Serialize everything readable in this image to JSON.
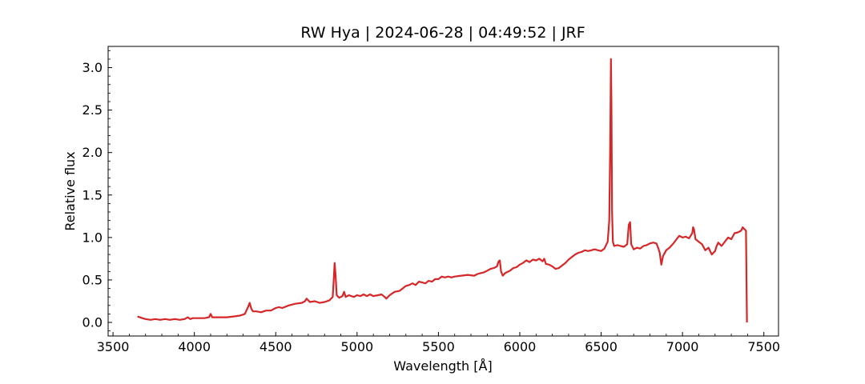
{
  "chart_data": {
    "type": "line",
    "title": "RW Hya | 2024-06-28 | 04:49:52 | JRF",
    "xlabel": "Wavelength [Å]",
    "ylabel": "Relative flux",
    "xlim": [
      3470,
      7590
    ],
    "ylim": [
      -0.16,
      3.25
    ],
    "xticks": [
      3500,
      4000,
      4500,
      5000,
      5500,
      6000,
      6500,
      7000,
      7500
    ],
    "xtick_labels": [
      "3500",
      "4000",
      "4500",
      "5000",
      "5500",
      "6000",
      "6500",
      "7000",
      "7500"
    ],
    "yticks": [
      0.0,
      0.5,
      1.0,
      1.5,
      2.0,
      2.5,
      3.0
    ],
    "ytick_labels": [
      "0.0",
      "0.5",
      "1.0",
      "1.5",
      "2.0",
      "2.5",
      "3.0"
    ],
    "grid": false,
    "series": [
      {
        "color": "#d62728",
        "x": [
          3650,
          3680,
          3700,
          3730,
          3760,
          3790,
          3820,
          3850,
          3880,
          3910,
          3940,
          3960,
          3975,
          3990,
          4020,
          4060,
          4090,
          4100,
          4110,
          4130,
          4160,
          4200,
          4240,
          4280,
          4310,
          4330,
          4340,
          4350,
          4360,
          4380,
          4410,
          4440,
          4470,
          4500,
          4520,
          4540,
          4580,
          4620,
          4660,
          4680,
          4690,
          4710,
          4740,
          4770,
          4800,
          4830,
          4850,
          4855,
          4862,
          4868,
          4875,
          4890,
          4910,
          4920,
          4930,
          4950,
          4980,
          5000,
          5020,
          5040,
          5060,
          5080,
          5100,
          5130,
          5150,
          5170,
          5180,
          5200,
          5230,
          5260,
          5280,
          5300,
          5320,
          5340,
          5360,
          5380,
          5400,
          5420,
          5440,
          5460,
          5480,
          5500,
          5520,
          5540,
          5560,
          5580,
          5600,
          5640,
          5680,
          5720,
          5740,
          5760,
          5780,
          5800,
          5820,
          5840,
          5860,
          5870,
          5877,
          5885,
          5895,
          5910,
          5940,
          5960,
          5980,
          6000,
          6020,
          6040,
          6060,
          6080,
          6100,
          6120,
          6140,
          6150,
          6160,
          6180,
          6200,
          6220,
          6240,
          6260,
          6280,
          6300,
          6320,
          6340,
          6360,
          6380,
          6400,
          6420,
          6440,
          6460,
          6480,
          6500,
          6520,
          6540,
          6550,
          6556,
          6560,
          6563,
          6567,
          6572,
          6580,
          6600,
          6620,
          6640,
          6660,
          6670,
          6678,
          6685,
          6700,
          6720,
          6740,
          6760,
          6780,
          6800,
          6820,
          6840,
          6850,
          6860,
          6870,
          6880,
          6900,
          6920,
          6940,
          6960,
          6980,
          7000,
          7020,
          7040,
          7060,
          7065,
          7070,
          7080,
          7100,
          7120,
          7140,
          7160,
          7180,
          7200,
          7210,
          7220,
          7240,
          7260,
          7280,
          7300,
          7320,
          7340,
          7360,
          7370,
          7380,
          7390,
          7393,
          7396
        ],
        "y": [
          0.07,
          0.05,
          0.04,
          0.03,
          0.04,
          0.03,
          0.04,
          0.03,
          0.04,
          0.03,
          0.04,
          0.06,
          0.04,
          0.05,
          0.05,
          0.05,
          0.06,
          0.1,
          0.06,
          0.06,
          0.06,
          0.06,
          0.07,
          0.08,
          0.1,
          0.18,
          0.23,
          0.16,
          0.13,
          0.13,
          0.12,
          0.14,
          0.14,
          0.17,
          0.18,
          0.17,
          0.2,
          0.22,
          0.23,
          0.25,
          0.28,
          0.24,
          0.25,
          0.23,
          0.24,
          0.26,
          0.3,
          0.45,
          0.7,
          0.55,
          0.32,
          0.29,
          0.31,
          0.36,
          0.3,
          0.32,
          0.3,
          0.32,
          0.31,
          0.33,
          0.31,
          0.33,
          0.31,
          0.32,
          0.33,
          0.3,
          0.28,
          0.32,
          0.36,
          0.37,
          0.4,
          0.43,
          0.44,
          0.46,
          0.44,
          0.48,
          0.47,
          0.46,
          0.49,
          0.48,
          0.51,
          0.51,
          0.54,
          0.53,
          0.54,
          0.53,
          0.54,
          0.55,
          0.56,
          0.55,
          0.57,
          0.58,
          0.59,
          0.61,
          0.63,
          0.64,
          0.66,
          0.72,
          0.73,
          0.6,
          0.55,
          0.58,
          0.61,
          0.64,
          0.65,
          0.68,
          0.7,
          0.73,
          0.71,
          0.74,
          0.73,
          0.75,
          0.72,
          0.75,
          0.69,
          0.68,
          0.66,
          0.63,
          0.64,
          0.67,
          0.7,
          0.74,
          0.77,
          0.8,
          0.82,
          0.83,
          0.85,
          0.84,
          0.85,
          0.86,
          0.85,
          0.84,
          0.87,
          0.95,
          1.2,
          2.1,
          3.1,
          2.6,
          1.3,
          0.95,
          0.9,
          0.91,
          0.9,
          0.89,
          0.92,
          1.15,
          1.18,
          0.92,
          0.86,
          0.88,
          0.87,
          0.9,
          0.91,
          0.93,
          0.94,
          0.93,
          0.88,
          0.82,
          0.68,
          0.78,
          0.85,
          0.88,
          0.92,
          0.97,
          1.02,
          1.0,
          1.01,
          0.99,
          1.05,
          1.12,
          1.1,
          0.98,
          0.95,
          0.92,
          0.85,
          0.88,
          0.8,
          0.84,
          0.9,
          0.94,
          0.9,
          0.95,
          1.0,
          0.98,
          1.05,
          1.06,
          1.08,
          1.12,
          1.1,
          1.08,
          0.55,
          0.0
        ]
      }
    ]
  }
}
